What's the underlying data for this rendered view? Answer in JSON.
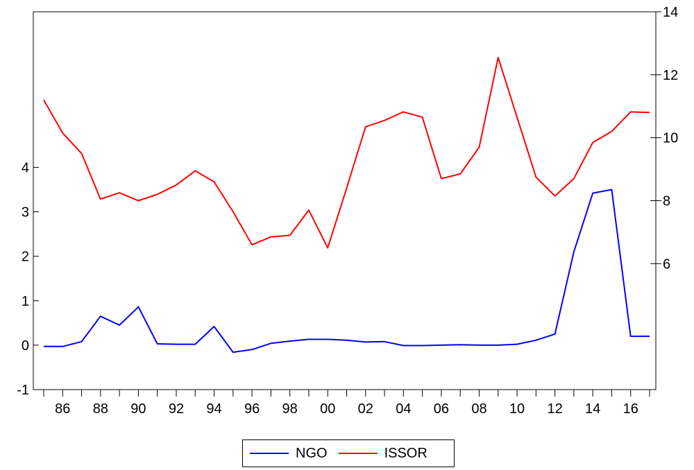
{
  "chart_data": {
    "type": "line",
    "title": "",
    "xlabel": "",
    "ylabel": "",
    "x": [
      "85",
      "86",
      "87",
      "88",
      "89",
      "90",
      "91",
      "92",
      "93",
      "94",
      "95",
      "96",
      "97",
      "98",
      "99",
      "00",
      "01",
      "02",
      "03",
      "04",
      "05",
      "06",
      "07",
      "08",
      "09",
      "10",
      "11",
      "12",
      "13",
      "14",
      "15",
      "16",
      "17"
    ],
    "x_tick_labels": [
      "86",
      "88",
      "90",
      "92",
      "94",
      "96",
      "98",
      "00",
      "02",
      "04",
      "06",
      "08",
      "10",
      "12",
      "14",
      "16"
    ],
    "left_axis": {
      "range": [
        -1,
        7.5
      ],
      "ticks": [
        "-1",
        "0",
        "1",
        "2",
        "3",
        "4"
      ]
    },
    "right_axis": {
      "range": [
        2,
        14
      ],
      "ticks": [
        "6",
        "8",
        "10",
        "12",
        "14"
      ]
    },
    "grid": false,
    "legend_position": "bottom-center",
    "series": [
      {
        "name": "NGO",
        "axis": "left",
        "color": "#0000ff",
        "values": [
          -0.03,
          -0.03,
          0.08,
          0.65,
          0.45,
          0.86,
          0.03,
          0.02,
          0.02,
          0.42,
          -0.16,
          -0.1,
          0.04,
          0.09,
          0.13,
          0.13,
          0.11,
          0.07,
          0.08,
          -0.01,
          -0.01,
          0,
          0.01,
          0,
          0,
          0.02,
          0.11,
          0.25,
          2.1,
          3.42,
          3.5,
          0.2,
          0.2
        ]
      },
      {
        "name": "ISSOR",
        "axis": "right",
        "color": "#ff0000",
        "values": [
          11.2,
          10.15,
          9.5,
          8.05,
          8.25,
          8.0,
          8.2,
          8.5,
          8.95,
          8.6,
          7.65,
          6.6,
          6.85,
          6.9,
          7.7,
          6.5,
          8.4,
          10.35,
          10.55,
          10.82,
          10.65,
          8.7,
          8.85,
          9.7,
          12.55,
          10.65,
          8.75,
          8.15,
          8.7,
          9.85,
          10.2,
          10.82,
          10.8
        ]
      }
    ]
  }
}
